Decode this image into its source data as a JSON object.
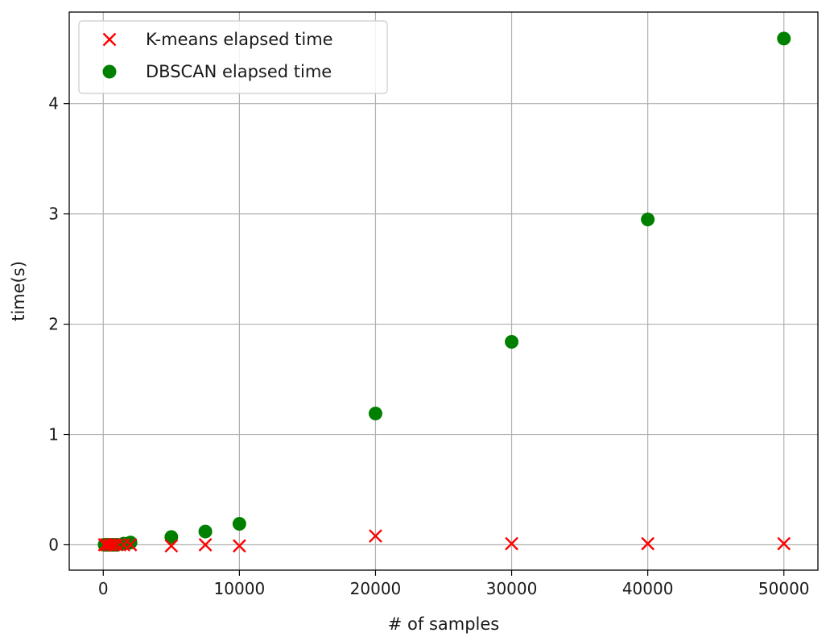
{
  "chart_data": {
    "type": "scatter",
    "title": "",
    "xlabel": "# of samples",
    "ylabel": "time(s)",
    "xlim": [
      -2500,
      52500
    ],
    "ylim": [
      -0.23,
      4.83
    ],
    "xticks": [
      0,
      10000,
      20000,
      30000,
      40000,
      50000
    ],
    "yticks": [
      0,
      1,
      2,
      3,
      4
    ],
    "grid": true,
    "legend_position": "upper-left",
    "series": [
      {
        "name": "K-means elapsed time",
        "marker": "x",
        "color": "#ff0000",
        "points": [
          [
            100,
            0.0
          ],
          [
            250,
            0.0
          ],
          [
            500,
            0.0
          ],
          [
            750,
            0.0
          ],
          [
            1000,
            0.0
          ],
          [
            1500,
            0.0
          ],
          [
            2000,
            0.0
          ],
          [
            5000,
            -0.01
          ],
          [
            7500,
            0.0
          ],
          [
            10000,
            -0.01
          ],
          [
            20000,
            0.08
          ],
          [
            30000,
            0.01
          ],
          [
            40000,
            0.01
          ],
          [
            50000,
            0.01
          ]
        ]
      },
      {
        "name": "DBSCAN elapsed time",
        "marker": "o",
        "color": "#008000",
        "points": [
          [
            100,
            0.0
          ],
          [
            250,
            0.0
          ],
          [
            500,
            0.0
          ],
          [
            750,
            0.0
          ],
          [
            1000,
            0.0
          ],
          [
            1500,
            0.01
          ],
          [
            2000,
            0.02
          ],
          [
            5000,
            0.07
          ],
          [
            7500,
            0.12
          ],
          [
            10000,
            0.19
          ],
          [
            20000,
            1.19
          ],
          [
            30000,
            1.84
          ],
          [
            40000,
            2.95
          ],
          [
            50000,
            4.59
          ]
        ]
      }
    ]
  }
}
